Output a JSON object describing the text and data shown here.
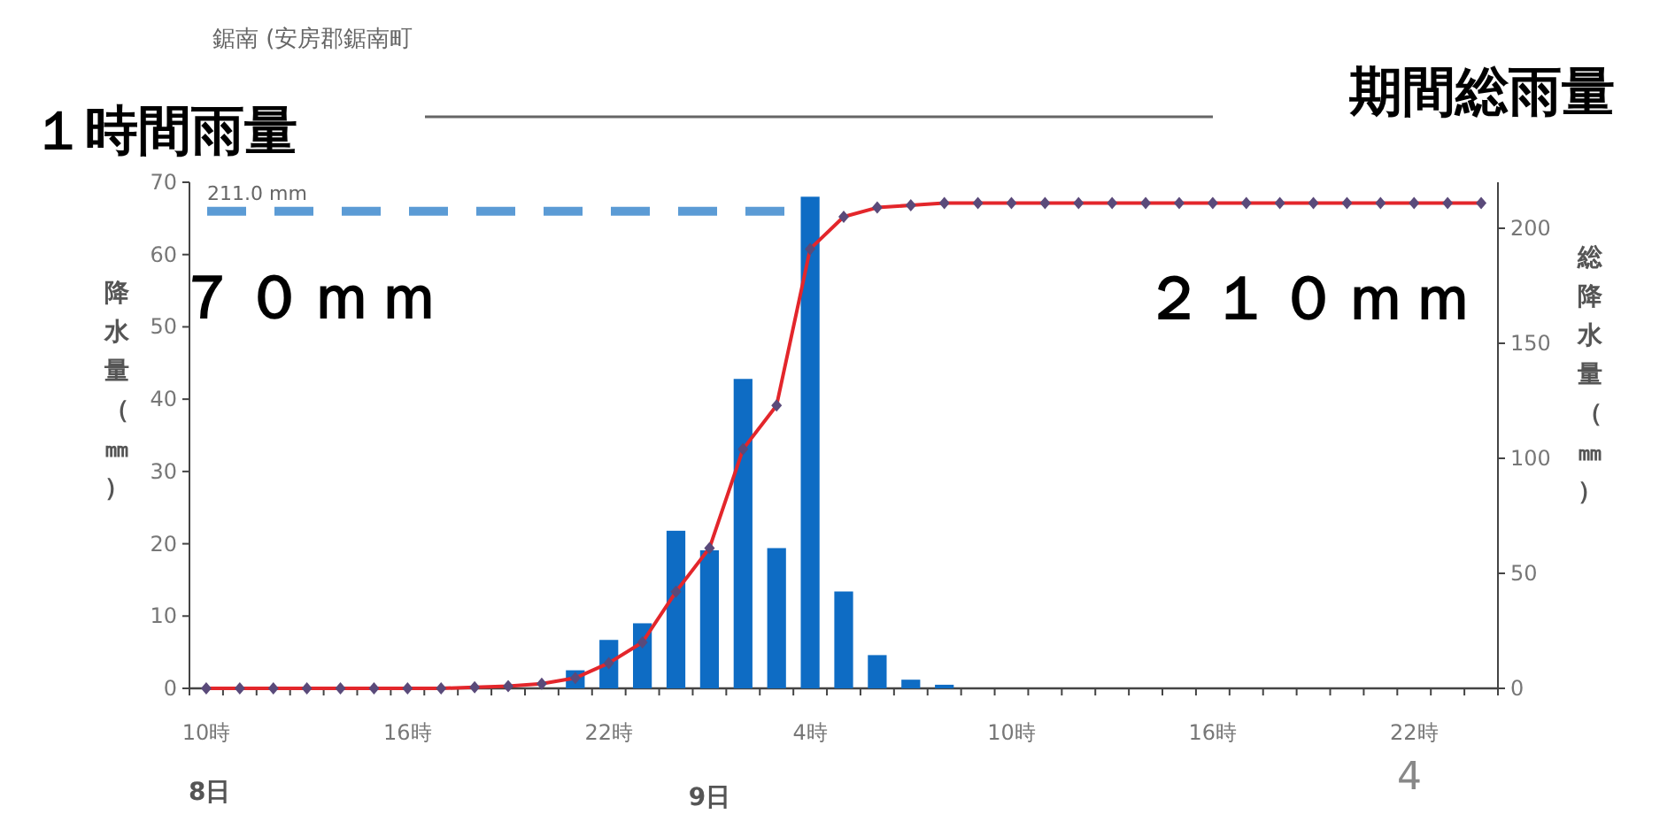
{
  "chart_data": {
    "type": "bar",
    "title": "鋸南 (安房郡鋸南町",
    "ylabel": "降水量（㎜）",
    "y2label": "総降水量（㎜）",
    "categories": [
      "10時",
      null,
      null,
      null,
      null,
      null,
      "16時",
      null,
      null,
      null,
      null,
      null,
      "22時",
      null,
      null,
      null,
      null,
      null,
      "4時",
      null,
      null,
      null,
      null,
      null,
      "10時",
      null,
      null,
      null,
      null,
      null,
      "16時",
      null,
      null,
      null,
      null,
      null,
      "22時",
      null,
      null
    ],
    "series": [
      {
        "type": "bar",
        "color": "#0e6cc4",
        "values": [
          0,
          0,
          0,
          0,
          0,
          0,
          0,
          0,
          null,
          null,
          null,
          2.5,
          6.7,
          9,
          21.8,
          19.1,
          42.8,
          19.4,
          68,
          13.4,
          4.6,
          1.2,
          0.5,
          0,
          0,
          0,
          0,
          0,
          0,
          0,
          0,
          0,
          0,
          0,
          0,
          0,
          0,
          0,
          0
        ]
      },
      {
        "type": "line",
        "axis": "y2",
        "color": "#e3262b",
        "values": [
          0,
          0,
          0,
          0,
          0,
          0,
          0,
          0,
          0.5,
          1,
          2,
          4.5,
          11,
          20,
          42,
          61,
          104,
          123,
          191,
          205,
          209,
          210,
          211,
          211,
          211,
          211,
          211,
          211,
          211,
          211,
          211,
          211,
          211,
          211,
          211,
          211,
          211,
          211,
          211
        ]
      }
    ],
    "marker": "diamond",
    "ylim": [
      0,
      70
    ],
    "yticks": [
      0,
      10,
      20,
      30,
      40,
      50,
      60,
      70
    ],
    "y2lim": [
      0,
      220
    ],
    "y2ticks": [
      0,
      50,
      100,
      150,
      200
    ],
    "ref_lines": [
      {
        "axis": "y",
        "value": 66,
        "label": "７０ｍｍ",
        "color": "#5b9bd5",
        "line_style": "dashed"
      }
    ],
    "annotations": [
      "8日",
      "9日",
      "１時間雨量",
      "期間総雨量",
      "２１０ｍｍ",
      "211.0 mm",
      "4"
    ]
  }
}
